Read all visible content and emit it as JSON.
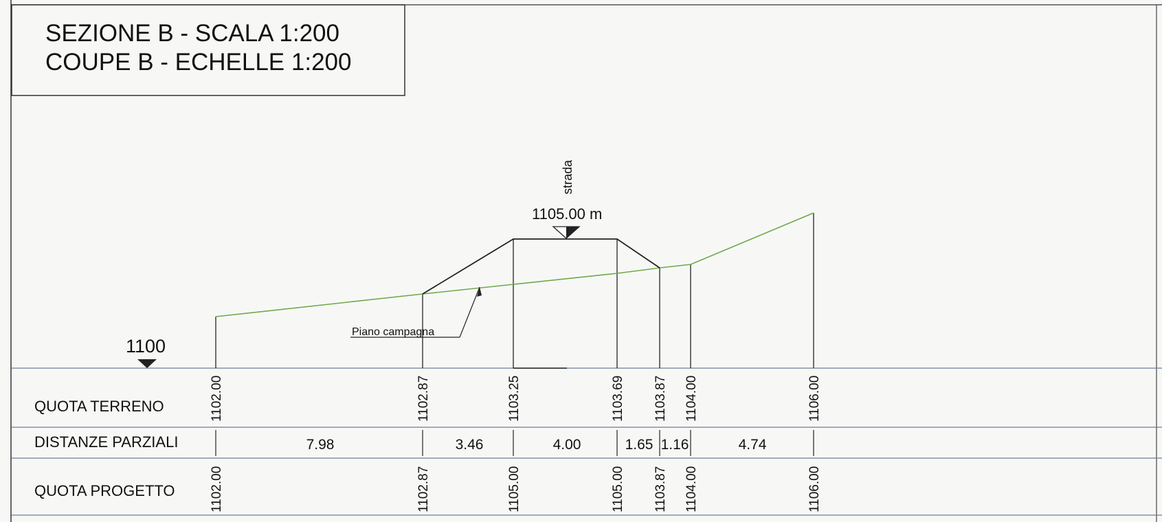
{
  "title": {
    "line1": "SEZIONE B - SCALA 1:200",
    "line2": "COUPE B - ECHELLE 1:200"
  },
  "datum": {
    "label": "1100"
  },
  "road": {
    "label": "strada",
    "elevation_label": "1105.00 m"
  },
  "ground_label": "Piano campagna",
  "rows": {
    "quota_terreno": "QUOTA TERRENO",
    "distanze_parziali": "DISTANZE PARZIALI",
    "quota_progetto": "QUOTA PROGETTO"
  },
  "stations": [
    {
      "terreno": "1102.00",
      "progetto": "1102.00"
    },
    {
      "terreno": "1102.87",
      "progetto": "1102.87"
    },
    {
      "terreno": "1103.25",
      "progetto": "1105.00"
    },
    {
      "terreno": "1103.69",
      "progetto": "1105.00"
    },
    {
      "terreno": "1103.87",
      "progetto": "1103.87"
    },
    {
      "terreno": "1104.00",
      "progetto": "1104.00"
    },
    {
      "terreno": "1106.00",
      "progetto": "1106.00"
    }
  ],
  "distances": [
    "7.98",
    "3.46",
    "4.00",
    "1.65",
    "1.16",
    "4.74"
  ]
}
